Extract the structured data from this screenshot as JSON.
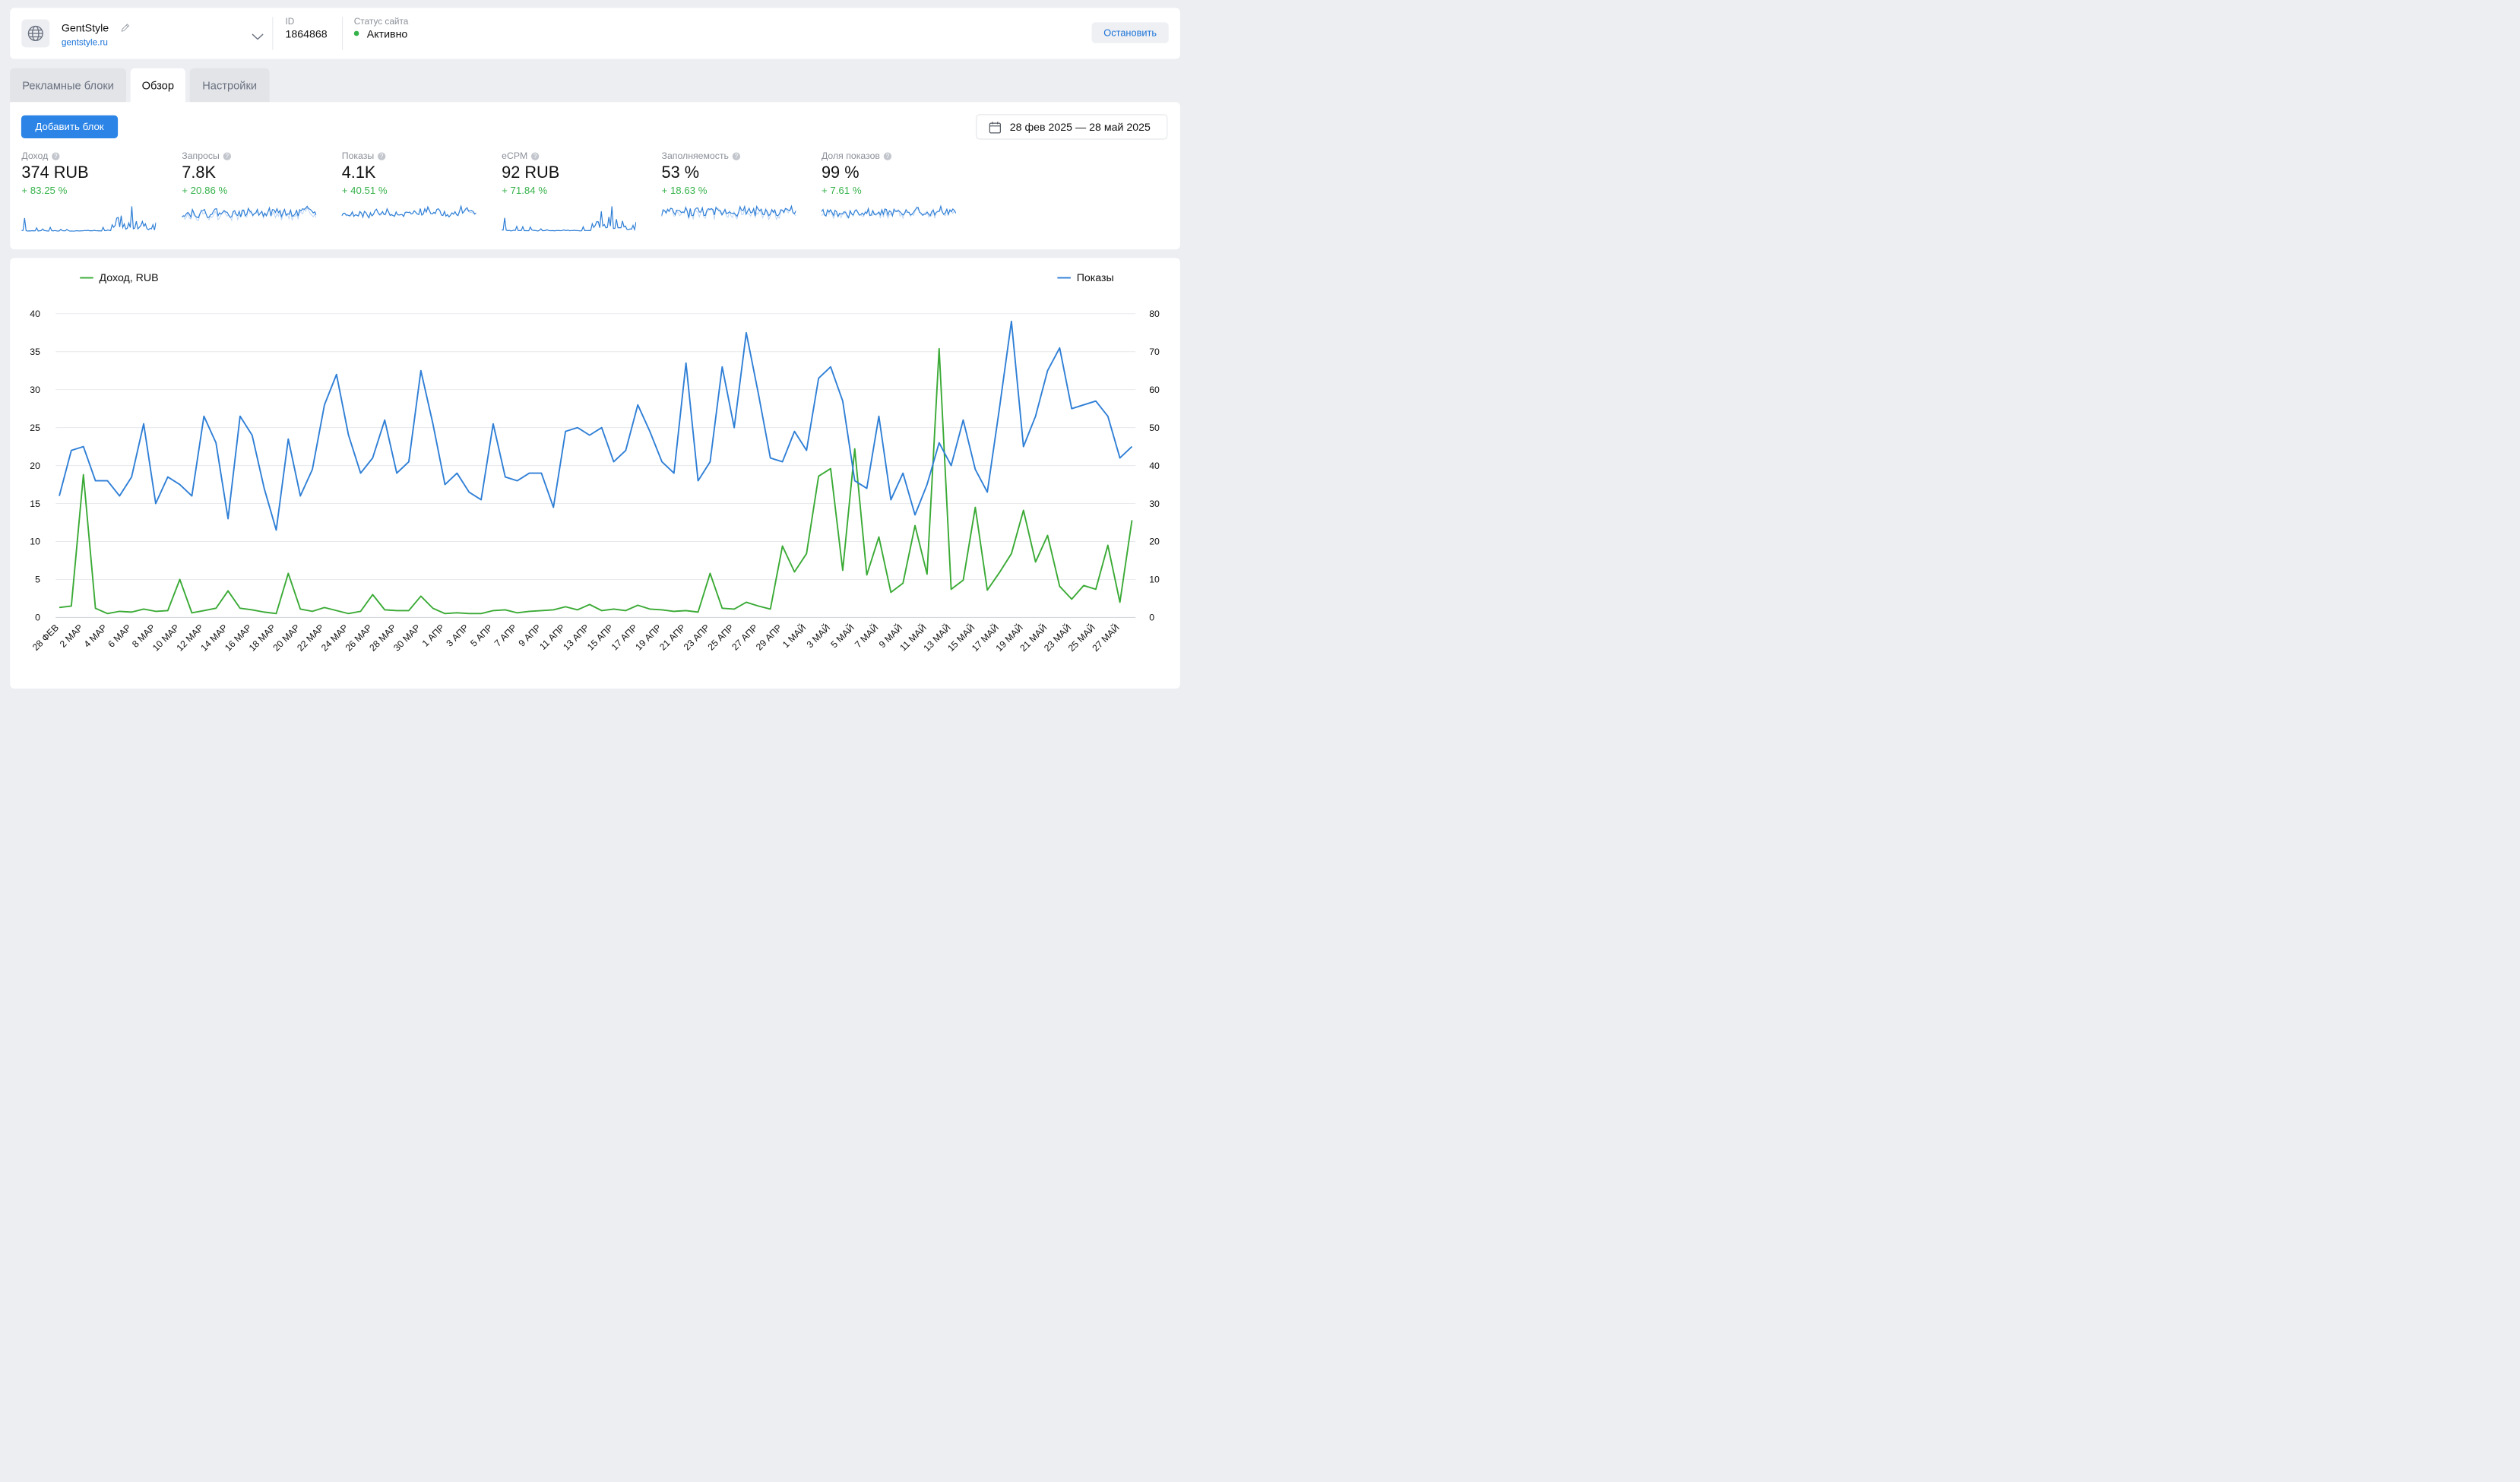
{
  "header": {
    "site_name": "GentStyle",
    "site_url": "gentstyle.ru",
    "id_label": "ID",
    "id_value": "1864868",
    "status_label": "Статус сайта",
    "status_value": "Активно",
    "status_color": "#36b24a",
    "stop_label": "Остановить",
    "icons": [
      "globe-icon",
      "pencil-icon",
      "chevron-down-icon"
    ]
  },
  "tabs": [
    {
      "label": "Рекламные блоки",
      "active": false
    },
    {
      "label": "Обзор",
      "active": true
    },
    {
      "label": "Настройки",
      "active": false
    }
  ],
  "toolbar": {
    "add_block_label": "Добавить блок",
    "date_range": "28 фев 2025 — 28 май 2025"
  },
  "metrics": [
    {
      "label": "Доход",
      "value": "374 RUB",
      "delta": "+ 83.25 %"
    },
    {
      "label": "Запросы",
      "value": "7.8K",
      "delta": "+ 20.86 %"
    },
    {
      "label": "Показы",
      "value": "4.1K",
      "delta": "+ 40.51 %"
    },
    {
      "label": "eCPM",
      "value": "92 RUB",
      "delta": "+ 71.84 %"
    },
    {
      "label": "Заполняемость",
      "value": "53 %",
      "delta": "+ 18.63 %"
    },
    {
      "label": "Доля показов",
      "value": "99 %",
      "delta": "+ 7.61 %"
    }
  ],
  "colors": {
    "accent": "#2b84e6",
    "income_line": "#3aaa35",
    "impressions_line": "#2f7fd6",
    "positive": "#36b24a"
  },
  "chart_data": {
    "type": "line",
    "legend_left": "Доход, RUB",
    "legend_right": "Показы",
    "y_left_range": [
      0,
      40
    ],
    "y_left_ticks": [
      0,
      5,
      10,
      15,
      20,
      25,
      30,
      35,
      40
    ],
    "y_right_range": [
      0,
      80
    ],
    "y_right_ticks": [
      0,
      10,
      20,
      30,
      40,
      50,
      60,
      70,
      80
    ],
    "grid": true,
    "x_tick_labels": [
      "28 ФЕВ",
      "2 МАР",
      "4 МАР",
      "6 МАР",
      "8 МАР",
      "10 МАР",
      "12 МАР",
      "14 МАР",
      "16 МАР",
      "18 МАР",
      "20 МАР",
      "22 МАР",
      "24 МАР",
      "26 МАР",
      "28 МАР",
      "30 МАР",
      "1 АПР",
      "3 АПР",
      "5 АПР",
      "7 АПР",
      "9 АПР",
      "11 АПР",
      "13 АПР",
      "15 АПР",
      "17 АПР",
      "19 АПР",
      "21 АПР",
      "23 АПР",
      "25 АПР",
      "27 АПР",
      "29 АПР",
      "1 МАЙ",
      "3 МАЙ",
      "5 МАЙ",
      "7 МАЙ",
      "9 МАЙ",
      "11 МАЙ",
      "13 МАЙ",
      "15 МАЙ",
      "17 МАЙ",
      "19 МАЙ",
      "21 МАЙ",
      "23 МАЙ",
      "25 МАЙ",
      "27 МАЙ"
    ],
    "series": [
      {
        "name": "Доход, RUB",
        "axis": "left",
        "values": [
          1.3,
          1.5,
          18.8,
          1.2,
          0.5,
          0.8,
          0.7,
          1.1,
          0.8,
          0.9,
          5.0,
          0.6,
          0.9,
          1.2,
          3.5,
          1.2,
          1.0,
          0.7,
          0.5,
          5.8,
          1.1,
          0.8,
          1.3,
          0.9,
          0.5,
          0.8,
          3.0,
          1.0,
          0.9,
          0.9,
          2.8,
          1.2,
          0.5,
          0.6,
          0.5,
          0.5,
          0.9,
          1.0,
          0.6,
          0.8,
          0.9,
          1.0,
          1.4,
          1.0,
          1.7,
          0.9,
          1.1,
          0.9,
          1.6,
          1.1,
          1.0,
          0.8,
          0.9,
          0.7,
          5.8,
          1.2,
          1.1,
          2.0,
          1.5,
          1.1,
          9.4,
          6.0,
          8.4,
          18.6,
          19.6,
          6.2,
          22.2,
          5.6,
          10.6,
          3.3,
          4.5,
          12.1,
          5.7,
          35.4,
          3.7,
          4.9,
          14.5,
          3.6,
          5.9,
          8.4,
          14.1,
          7.3,
          10.8,
          4.1,
          2.4,
          4.2,
          3.7,
          9.5,
          2.0,
          12.8
        ]
      },
      {
        "name": "Показы",
        "axis": "right",
        "values": [
          32,
          44,
          45,
          36,
          36,
          32,
          37,
          51,
          30,
          37,
          35,
          32,
          53,
          46,
          26,
          53,
          48,
          34,
          23,
          47,
          32,
          39,
          56,
          64,
          48,
          38,
          42,
          52,
          38,
          41,
          65,
          51,
          35,
          38,
          33,
          31,
          51,
          37,
          36,
          38,
          38,
          29,
          49,
          50,
          48,
          50,
          41,
          44,
          56,
          49,
          41,
          38,
          67,
          36,
          41,
          66,
          50,
          75,
          59,
          42,
          41,
          49,
          44,
          63,
          66,
          57,
          36,
          34,
          53,
          31,
          38,
          27,
          35,
          46,
          40,
          52,
          39,
          33,
          55,
          78,
          45,
          53,
          65,
          71,
          55,
          56,
          57,
          53,
          42,
          45
        ]
      }
    ]
  }
}
